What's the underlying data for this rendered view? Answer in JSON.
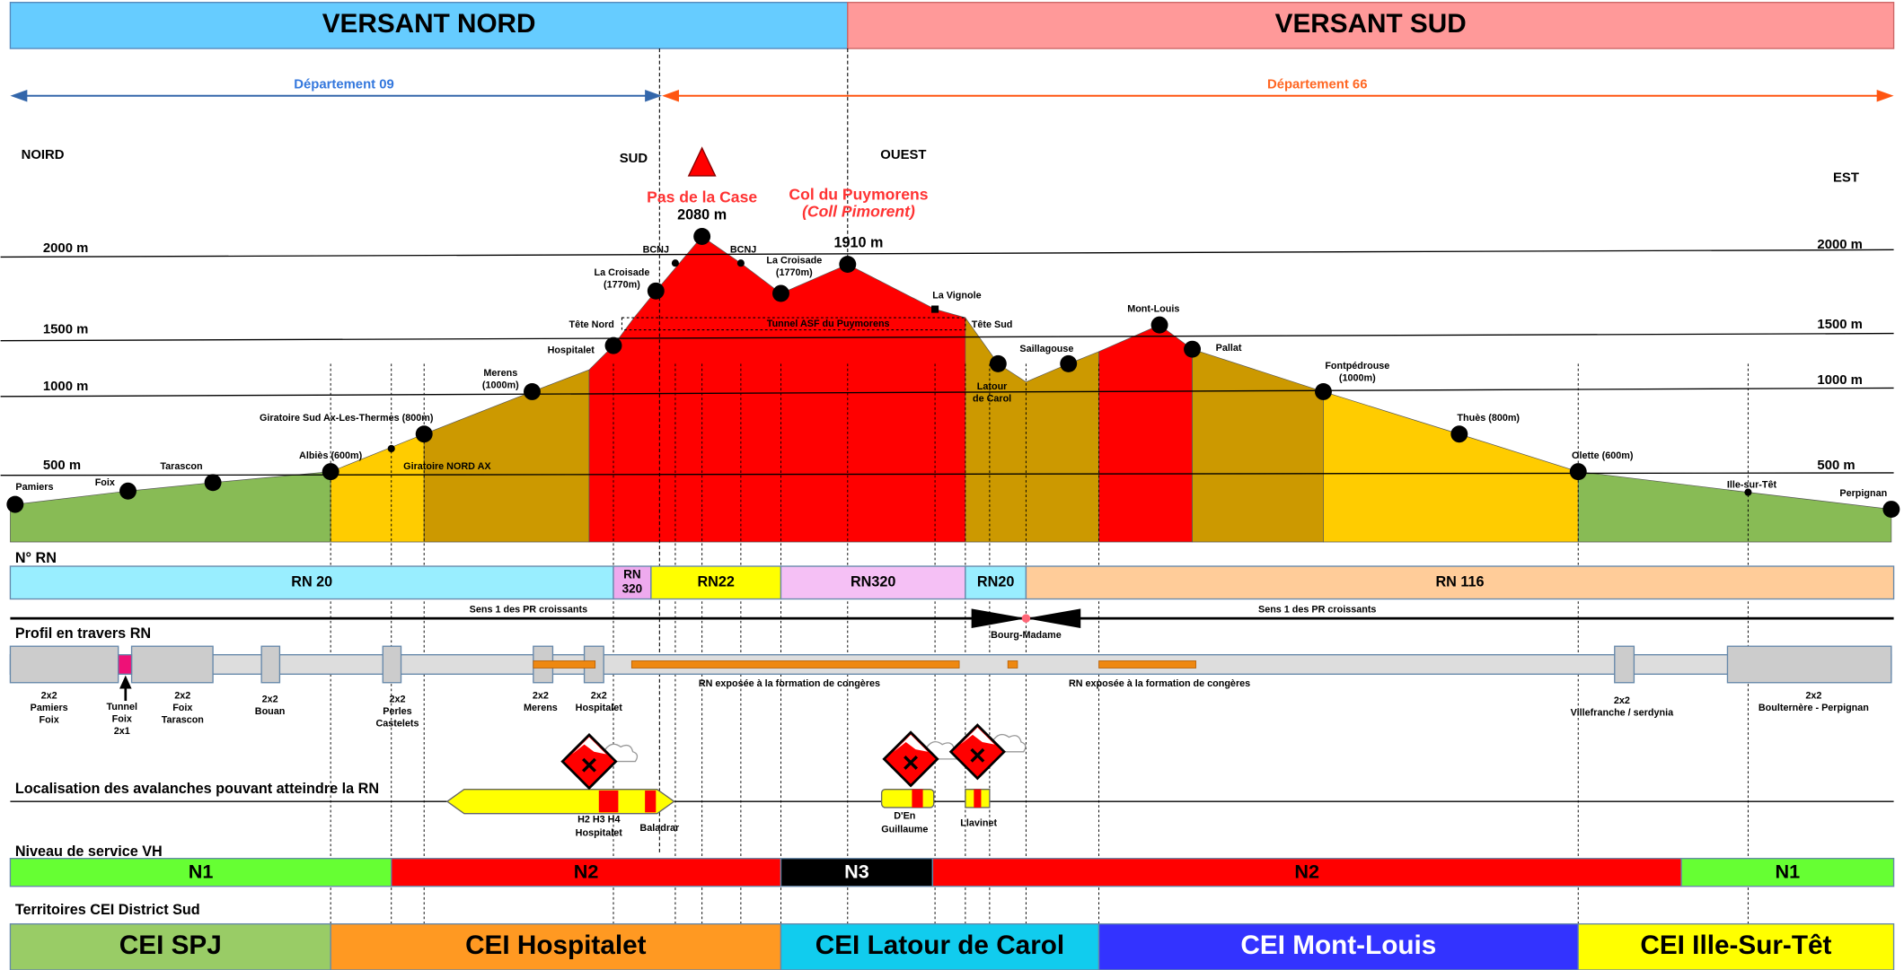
{
  "header": {
    "north": "VERSANT NORD",
    "south": "VERSANT SUD"
  },
  "departments": [
    "Département 09",
    "Département 66"
  ],
  "directions": [
    "NOIRD",
    "SUD",
    "OUEST",
    "EST"
  ],
  "altitudes": [
    "2000 m",
    "1500 m",
    "1000 m",
    "500 m"
  ],
  "places": [
    [
      "Pamiers"
    ],
    [
      "Foix"
    ],
    [
      "Tarascon"
    ],
    [
      "Albiès (600m)"
    ],
    [
      "Giratoire Sud Ax-Les-Thermes (800m)"
    ],
    [
      "Giratoire NORD AX"
    ],
    [
      "Merens",
      "(1000m)"
    ],
    [
      "Hospitalet"
    ],
    [
      "Tête Nord"
    ],
    [
      "La Croisade",
      "(1770m)"
    ],
    [
      "BCNJ"
    ],
    [
      "Pas de la Case"
    ],
    [
      "2080 m"
    ],
    [
      "BCNJ"
    ],
    [
      "La Croisade",
      "(1770m)"
    ],
    [
      "Col du Puymorens",
      "(Coll Pimorent)"
    ],
    [
      "1910 m"
    ],
    [
      "La Vignole"
    ],
    [
      "Tunnel ASF du Puymorens"
    ],
    [
      "Tête Sud"
    ],
    [
      "Latour",
      "de Carol"
    ],
    [
      "Saillagouse"
    ],
    [
      "Mont-Louis"
    ],
    [
      "Pallat"
    ],
    [
      "Fontpédrouse",
      "(1000m)"
    ],
    [
      "Thuès (800m)"
    ],
    [
      "Olette (600m)"
    ],
    [
      "Ille-sur-Têt"
    ],
    [
      "Perpignan"
    ]
  ],
  "sections": {
    "roads": "N° RN",
    "profile": "Profil en travers RN",
    "avalanches": "Localisation des avalanches pouvant atteindre la RN",
    "service": "Niveau de service VH",
    "territories": "Territoires CEI District Sud"
  },
  "roads": [
    [
      "RN 20"
    ],
    [
      "RN",
      "320"
    ],
    [
      "RN22"
    ],
    [
      "RN320"
    ],
    [
      "RN20"
    ],
    [
      "RN 116"
    ]
  ],
  "direction_notes": [
    "Sens 1 des PR croissants",
    "Sens 1 des PR croissants",
    "Bourg-Madame"
  ],
  "profile_labels": [
    [
      "2x2",
      "Pamiers",
      "Foix"
    ],
    [
      "Tunnel",
      "Foix",
      "2x1"
    ],
    [
      "2x2",
      "Foix",
      "Tarascon"
    ],
    [
      "2x2",
      "Bouan"
    ],
    [
      "2x2",
      "Perles",
      "Castelets"
    ],
    [
      "2x2",
      "Merens"
    ],
    [
      "2x2",
      "Hospitalet"
    ],
    [
      "RN exposée à la formation de congères"
    ],
    [
      "RN exposée à la formation de congères"
    ],
    [
      "2x2",
      "Villefranche / serdynia"
    ],
    [
      "2x2",
      "Boulternère  - Perpignan"
    ]
  ],
  "avalanche_labels": [
    [
      "H2 H3 H4",
      "Hospitalet"
    ],
    [
      "Baladrar"
    ],
    [
      "D'En",
      "Guillaume"
    ],
    [
      "Llavinet"
    ]
  ],
  "service_levels": [
    "N1",
    "N2",
    "N3",
    "N2",
    "N1"
  ],
  "territories": [
    "CEI SPJ",
    "CEI Hospitalet",
    "CEI Latour de Carol",
    "CEI Mont-Louis",
    "CEI Ille-Sur-Têt"
  ]
}
